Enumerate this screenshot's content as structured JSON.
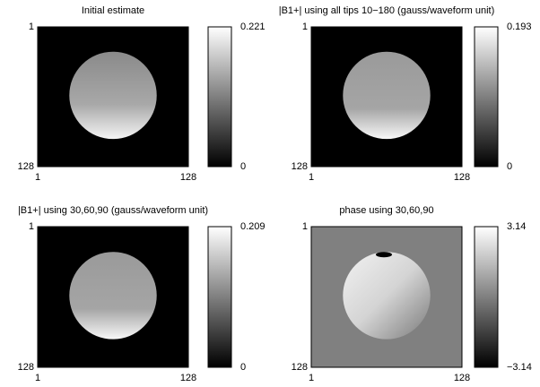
{
  "chart_data": [
    {
      "type": "image",
      "title": "Initial estimate",
      "xlim": [
        1,
        128
      ],
      "xticks": [
        1,
        128
      ],
      "ylim": [
        1,
        128
      ],
      "yticks": [
        1,
        128
      ],
      "y_reversed": true,
      "colormap": "gray",
      "clim": [
        0,
        0.221
      ],
      "cticks": [
        0,
        0.221
      ]
    },
    {
      "type": "image",
      "title": "|B1+| using all tips 10−180 (gauss/waveform unit)",
      "xlim": [
        1,
        128
      ],
      "xticks": [
        1,
        128
      ],
      "ylim": [
        1,
        128
      ],
      "yticks": [
        1,
        128
      ],
      "y_reversed": true,
      "colormap": "gray",
      "clim": [
        0,
        0.193
      ],
      "cticks": [
        0,
        0.193
      ]
    },
    {
      "type": "image",
      "title": "|B1+| using 30,60,90 (gauss/waveform unit)",
      "xlim": [
        1,
        128
      ],
      "xticks": [
        1,
        128
      ],
      "ylim": [
        1,
        128
      ],
      "yticks": [
        1,
        128
      ],
      "y_reversed": true,
      "colormap": "gray",
      "clim": [
        0,
        0.209
      ],
      "cticks": [
        0,
        0.209
      ]
    },
    {
      "type": "image",
      "title": "phase using 30,60,90",
      "xlim": [
        1,
        128
      ],
      "xticks": [
        1,
        128
      ],
      "ylim": [
        1,
        128
      ],
      "yticks": [
        1,
        128
      ],
      "y_reversed": true,
      "colormap": "gray",
      "clim": [
        -3.14,
        3.14
      ],
      "cticks": [
        {
          "value": -3.14,
          "label": "−3.14"
        },
        3.14
      ]
    }
  ]
}
